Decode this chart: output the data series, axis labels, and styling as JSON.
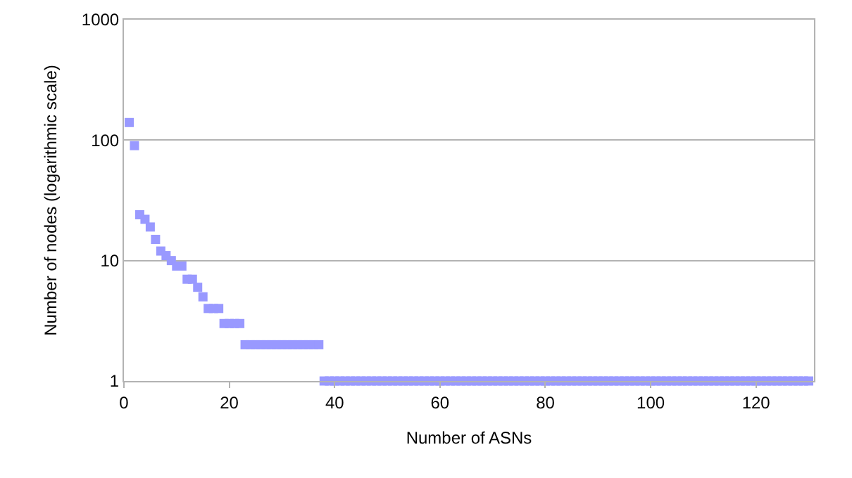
{
  "chart_data": {
    "type": "scatter",
    "xlabel": "Number of ASNs",
    "ylabel": "Number of nodes (logarithmic scale)",
    "log": true,
    "grid": "y",
    "marker": "square",
    "color": "#9999ff",
    "x": [
      1,
      2,
      3,
      4,
      5,
      6,
      7,
      8,
      9,
      10,
      11,
      12,
      13,
      14,
      15,
      16,
      17,
      18,
      19,
      20,
      21,
      22,
      23,
      24,
      25,
      26,
      27,
      28,
      29,
      30,
      31,
      32,
      33,
      34,
      35,
      36,
      37,
      38,
      39,
      40,
      41,
      42,
      43,
      44,
      45,
      46,
      47,
      48,
      49,
      50,
      51,
      52,
      53,
      54,
      55,
      56,
      57,
      58,
      59,
      60,
      61,
      62,
      63,
      64,
      65,
      66,
      67,
      68,
      69,
      70,
      71,
      72,
      73,
      74,
      75,
      76,
      77,
      78,
      79,
      80,
      81,
      82,
      83,
      84,
      85,
      86,
      87,
      88,
      89,
      90,
      91,
      92,
      93,
      94,
      95,
      96,
      97,
      98,
      99,
      100,
      101,
      102,
      103,
      104,
      105,
      106,
      107,
      108,
      109,
      110,
      111,
      112,
      113,
      114,
      115,
      116,
      117,
      118,
      119,
      120,
      121,
      122,
      123,
      124,
      125,
      126,
      127,
      128,
      129,
      130
    ],
    "values": [
      140,
      90,
      24,
      22,
      19,
      15,
      12,
      11,
      10,
      9,
      9,
      7,
      7,
      6,
      5,
      4,
      4,
      4,
      3,
      3,
      3,
      3,
      2,
      2,
      2,
      2,
      2,
      2,
      2,
      2,
      2,
      2,
      2,
      2,
      2,
      2,
      2,
      1,
      1,
      1,
      1,
      1,
      1,
      1,
      1,
      1,
      1,
      1,
      1,
      1,
      1,
      1,
      1,
      1,
      1,
      1,
      1,
      1,
      1,
      1,
      1,
      1,
      1,
      1,
      1,
      1,
      1,
      1,
      1,
      1,
      1,
      1,
      1,
      1,
      1,
      1,
      1,
      1,
      1,
      1,
      1,
      1,
      1,
      1,
      1,
      1,
      1,
      1,
      1,
      1,
      1,
      1,
      1,
      1,
      1,
      1,
      1,
      1,
      1,
      1,
      1,
      1,
      1,
      1,
      1,
      1,
      1,
      1,
      1,
      1,
      1,
      1,
      1,
      1,
      1,
      1,
      1,
      1,
      1,
      1,
      1,
      1,
      1,
      1,
      1,
      1,
      1,
      1,
      1,
      1
    ],
    "xlim": [
      0,
      131
    ],
    "xticks": [
      0,
      20,
      40,
      60,
      80,
      100,
      120
    ],
    "ylim": [
      1,
      1000
    ],
    "yticks": [
      1,
      10,
      100,
      1000
    ]
  }
}
